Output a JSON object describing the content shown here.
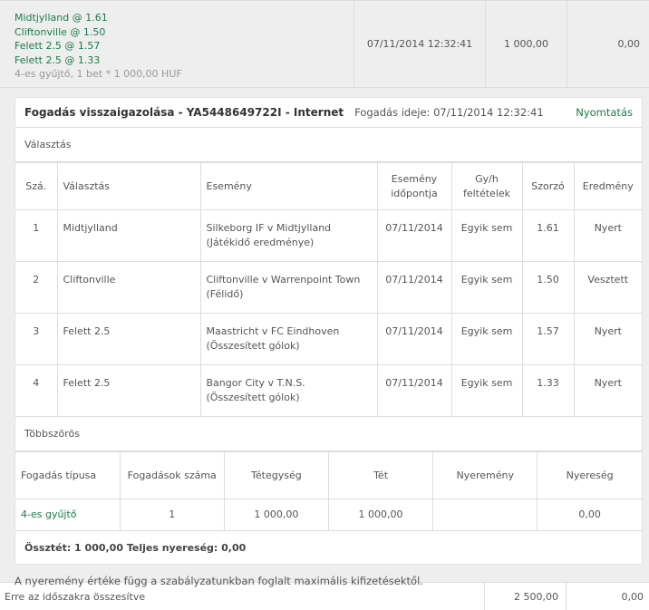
{
  "summary_row": {
    "selections": [
      "Midtjylland @  1.61",
      "Cliftonville @  1.50",
      "Felett  2.5 @  1.57",
      "Felett  2.5 @  1.33"
    ],
    "bet_info": "4-es gyűjtő, 1  bet * 1 000,00 HUF",
    "date": "07/11/2014 12:32:41",
    "stake": "1 000,00",
    "return": "0,00"
  },
  "confirmation": {
    "title": "Fogadás visszaigazolása  - YA5448649722I  - Internet",
    "time_label": "Fogadás ideje:  07/11/2014 12:32:41",
    "print_label": "Nyomtatás",
    "selections_label": "Választás",
    "columns": [
      "Szá.",
      "Választás",
      "Esemény",
      "Esemény időpontja",
      "Gy/h feltételek",
      "Szorzó",
      "Eredmény"
    ],
    "rows": [
      {
        "no": "1",
        "selection": "Midtjylland",
        "event": "Silkeborg IF v Midtjylland",
        "market": "(Játékidő eredménye)",
        "date": "07/11/2014",
        "conditions": "Egyik sem",
        "odds": "1.61",
        "result": "Nyert"
      },
      {
        "no": "2",
        "selection": "Cliftonville",
        "event": "Cliftonville v Warrenpoint Town",
        "market": "(Félidő)",
        "date": "07/11/2014",
        "conditions": "Egyik sem",
        "odds": "1.50",
        "result": "Vesztett"
      },
      {
        "no": "3",
        "selection": "Felett 2.5",
        "event": "Maastricht v FC Eindhoven",
        "market": "(Összesített gólok)",
        "date": "07/11/2014",
        "conditions": "Egyik sem",
        "odds": "1.57",
        "result": "Nyert"
      },
      {
        "no": "4",
        "selection": "Felett 2.5",
        "event": "Bangor City v T.N.S.",
        "market": "(Összesített gólok)",
        "date": "07/11/2014",
        "conditions": "Egyik sem",
        "odds": "1.33",
        "result": "Nyert"
      }
    ],
    "multiples_label": "Többszörös",
    "multi_columns": [
      "Fogadás típusa",
      "Fogadások száma",
      "Tétegység",
      "Tét",
      "Nyeremény",
      "Nyereség"
    ],
    "multi_row": {
      "type": "4-es gyűjtő",
      "count": "1",
      "unit": "1 000,00",
      "stake": "1 000,00",
      "winnings": "",
      "profit": "0,00"
    },
    "total": "Össztét: 1 000,00   Teljes nyereség:  0,00"
  },
  "note": "A nyeremény értéke függ a szabályzatunkban foglalt maximális kifizetésektől.",
  "period_total": {
    "label": "Erre az időszakra összesítve",
    "stake": "2 500,00",
    "return": "0,00"
  }
}
